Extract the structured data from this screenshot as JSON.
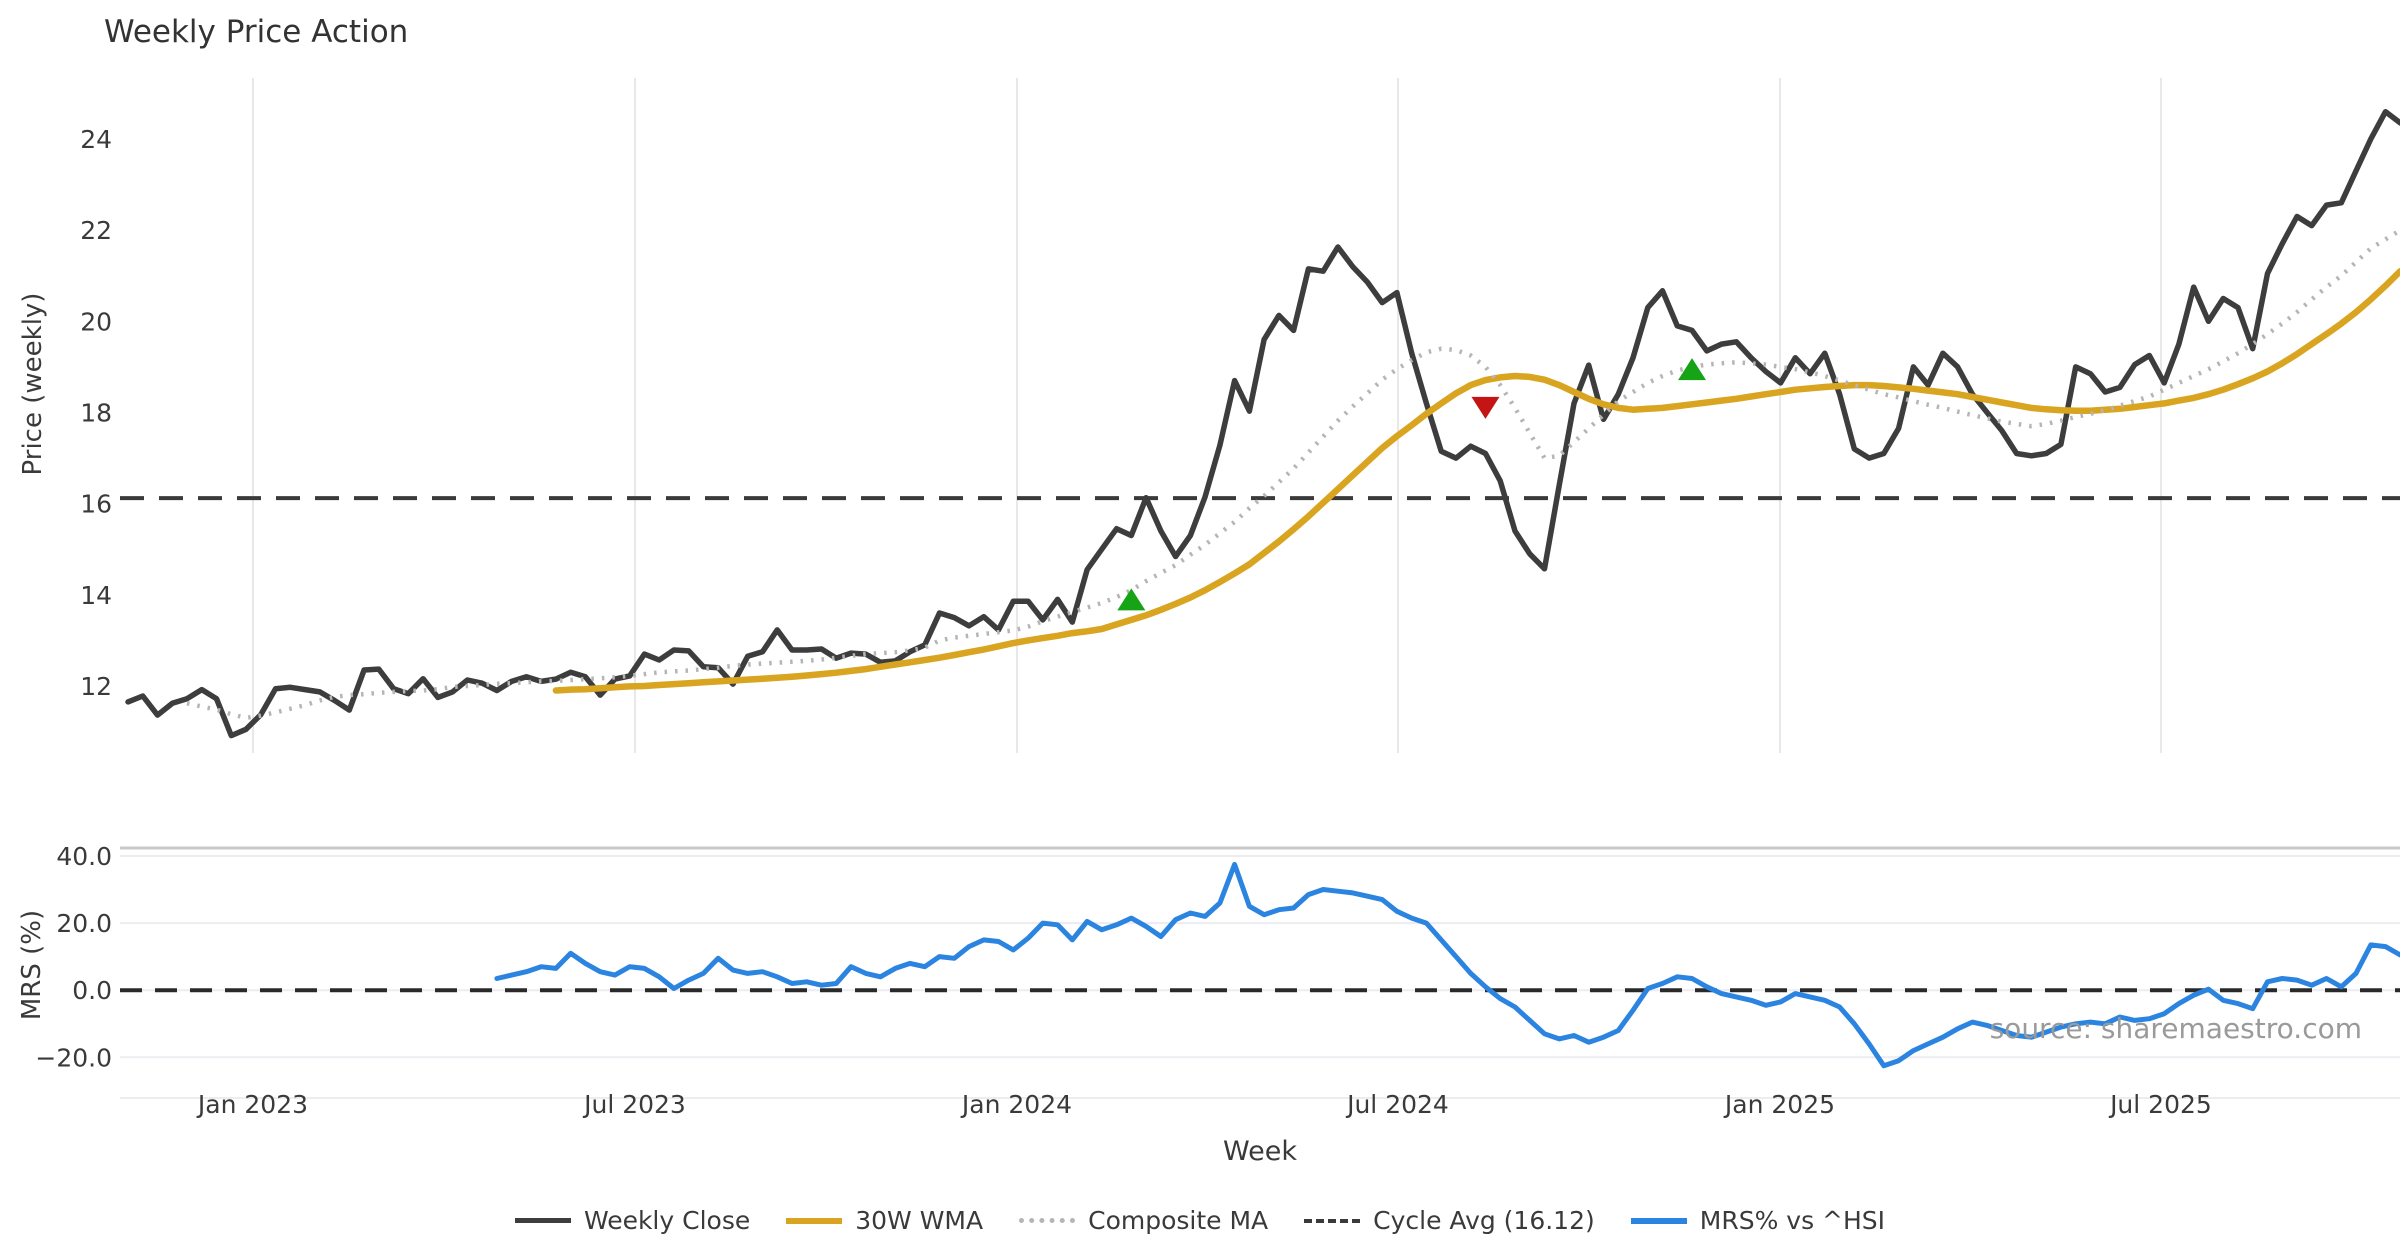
{
  "title": "Weekly Price Action",
  "source": "source: sharemaestro.com",
  "colors": {
    "close": "#3d3d3d",
    "wma": "#d9a420",
    "composite": "#b5b5b5",
    "cycle": "#3a3a3a",
    "mrs": "#2b84e0",
    "buy": "#16a316",
    "sell": "#c41414",
    "grid_upper": "#e8e8e8",
    "grid_lower": "#ececf1",
    "panel_border": "#c9c9c9",
    "zero_line": "#2a2a2a"
  },
  "chart_data": {
    "type": "line",
    "xlabel": "Week",
    "x_unit": "weekly, Nov 2022 - Nov 2025",
    "xticks": [
      {
        "label": "Jan 2023",
        "week": 8.47
      },
      {
        "label": "Jul 2023",
        "week": 34.36
      },
      {
        "label": "Jan 2024",
        "week": 60.25
      },
      {
        "label": "Jul 2024",
        "week": 86.07
      },
      {
        "label": "Jan 2025",
        "week": 111.96
      },
      {
        "label": "Jul 2025",
        "week": 137.78
      }
    ],
    "panels": [
      {
        "name": "price",
        "ylabel": "Price (weekly)",
        "ylim": [
          10.5,
          25.3
        ],
        "yticks": [
          {
            "label": "24",
            "v": 24
          },
          {
            "label": "22",
            "v": 22
          },
          {
            "label": "20",
            "v": 20
          },
          {
            "label": "18",
            "v": 18
          },
          {
            "label": "16",
            "v": 16
          },
          {
            "label": "14",
            "v": 14
          },
          {
            "label": "12",
            "v": 12
          }
        ],
        "cycle_avg": 16.12
      },
      {
        "name": "mrs",
        "ylabel": "MRS (%)",
        "ylim": [
          -32,
          42
        ],
        "yticks": [
          {
            "label": "40.0",
            "v": 40
          },
          {
            "label": "20.0",
            "v": 20
          },
          {
            "label": "0.0",
            "v": 0
          },
          {
            "label": "−20.0",
            "v": -20
          }
        ],
        "zero_line": 0
      }
    ],
    "series": [
      {
        "name": "Weekly Close",
        "panel": 0,
        "style": "solid",
        "color_key": "close",
        "width": 5.5,
        "start_week": 0,
        "values": [
          11.65,
          11.78,
          11.36,
          11.62,
          11.72,
          11.92,
          11.72,
          10.91,
          11.05,
          11.37,
          11.94,
          11.97,
          11.92,
          11.87,
          11.68,
          11.47,
          12.35,
          12.37,
          11.94,
          11.83,
          12.16,
          11.75,
          11.87,
          12.13,
          12.06,
          11.9,
          12.1,
          12.2,
          12.1,
          12.15,
          12.3,
          12.2,
          11.8,
          12.15,
          12.22,
          12.7,
          12.57,
          12.79,
          12.77,
          12.42,
          12.4,
          12.04,
          12.65,
          12.75,
          13.23,
          12.79,
          12.79,
          12.81,
          12.61,
          12.72,
          12.7,
          12.52,
          12.55,
          12.75,
          12.9,
          13.6,
          13.5,
          13.32,
          13.52,
          13.23,
          13.86,
          13.86,
          13.45,
          13.9,
          13.4,
          14.55,
          15.0,
          15.45,
          15.3,
          16.13,
          15.4,
          14.84,
          15.3,
          16.15,
          17.28,
          18.7,
          18.03,
          19.6,
          20.13,
          19.8,
          21.15,
          21.1,
          21.63,
          21.2,
          20.86,
          20.41,
          20.63,
          19.3,
          18.2,
          17.15,
          17.0,
          17.26,
          17.1,
          16.5,
          15.4,
          14.9,
          14.57,
          16.4,
          18.2,
          19.04,
          17.85,
          18.4,
          19.2,
          20.3,
          20.67,
          19.9,
          19.8,
          19.35,
          19.5,
          19.55,
          19.2,
          18.9,
          18.65,
          19.2,
          18.85,
          19.3,
          18.4,
          17.2,
          17.0,
          17.1,
          17.65,
          19.0,
          18.6,
          19.3,
          19.0,
          18.4,
          18.0,
          17.6,
          17.1,
          17.05,
          17.1,
          17.3,
          19.0,
          18.85,
          18.45,
          18.55,
          19.05,
          19.25,
          18.65,
          19.5,
          20.75,
          20.0,
          20.5,
          20.3,
          19.4,
          21.05,
          21.7,
          22.3,
          22.1,
          22.55,
          22.6,
          23.3,
          24.0,
          24.6,
          24.35
        ]
      },
      {
        "name": "30W WMA",
        "panel": 0,
        "style": "solid",
        "color_key": "wma",
        "width": 6.5,
        "start_week": 29,
        "values": [
          11.9,
          11.92,
          11.93,
          11.95,
          11.97,
          11.99,
          12.0,
          12.02,
          12.04,
          12.06,
          12.08,
          12.1,
          12.12,
          12.14,
          12.16,
          12.18,
          12.2,
          12.23,
          12.26,
          12.29,
          12.33,
          12.37,
          12.42,
          12.47,
          12.52,
          12.57,
          12.62,
          12.68,
          12.74,
          12.8,
          12.87,
          12.94,
          13.0,
          13.05,
          13.1,
          13.16,
          13.2,
          13.25,
          13.35,
          13.45,
          13.55,
          13.67,
          13.8,
          13.94,
          14.1,
          14.28,
          14.47,
          14.67,
          14.92,
          15.17,
          15.44,
          15.72,
          16.02,
          16.32,
          16.62,
          16.92,
          17.22,
          17.48,
          17.72,
          17.97,
          18.2,
          18.42,
          18.6,
          18.71,
          18.77,
          18.8,
          18.78,
          18.72,
          18.6,
          18.45,
          18.3,
          18.18,
          18.1,
          18.06,
          18.08,
          18.1,
          18.14,
          18.18,
          18.22,
          18.26,
          18.3,
          18.35,
          18.4,
          18.45,
          18.5,
          18.53,
          18.56,
          18.58,
          18.6,
          18.6,
          18.58,
          18.55,
          18.52,
          18.48,
          18.44,
          18.4,
          18.34,
          18.28,
          18.22,
          18.16,
          18.1,
          18.07,
          18.05,
          18.04,
          18.04,
          18.06,
          18.08,
          18.12,
          18.16,
          18.2,
          18.26,
          18.32,
          18.4,
          18.5,
          18.62,
          18.75,
          18.9,
          19.08,
          19.28,
          19.5,
          19.72,
          19.95,
          20.2,
          20.48,
          20.78,
          21.1
        ]
      },
      {
        "name": "Composite MA",
        "panel": 0,
        "style": "dotted",
        "color_key": "composite",
        "width": 4.5,
        "start_week": 4,
        "values": [
          11.62,
          11.55,
          11.48,
          11.38,
          11.3,
          11.35,
          11.42,
          11.5,
          11.58,
          11.68,
          11.76,
          11.8,
          11.82,
          11.85,
          11.87,
          11.89,
          11.9,
          11.93,
          11.98,
          12.0,
          12.02,
          12.05,
          12.06,
          12.08,
          12.1,
          12.11,
          12.13,
          12.15,
          12.17,
          12.19,
          12.22,
          12.26,
          12.3,
          12.32,
          12.34,
          12.37,
          12.4,
          12.44,
          12.47,
          12.49,
          12.51,
          12.53,
          12.55,
          12.58,
          12.62,
          12.66,
          12.7,
          12.72,
          12.74,
          12.78,
          12.84,
          13.0,
          13.06,
          13.1,
          13.14,
          13.18,
          13.22,
          13.3,
          13.42,
          13.52,
          13.62,
          13.72,
          13.82,
          13.95,
          14.1,
          14.3,
          14.48,
          14.65,
          14.88,
          15.1,
          15.35,
          15.6,
          15.9,
          16.17,
          16.47,
          16.77,
          17.12,
          17.47,
          17.82,
          18.13,
          18.42,
          18.72,
          18.95,
          19.15,
          19.32,
          19.4,
          19.37,
          19.25,
          19.0,
          18.6,
          18.1,
          17.55,
          17.0,
          17.05,
          17.35,
          17.65,
          17.95,
          18.25,
          18.45,
          18.65,
          18.8,
          18.92,
          19.0,
          19.05,
          19.08,
          19.1,
          19.08,
          19.05,
          19.0,
          18.95,
          18.88,
          18.8,
          18.7,
          18.6,
          18.5,
          18.4,
          18.33,
          18.25,
          18.17,
          18.1,
          18.02,
          17.94,
          17.87,
          17.8,
          17.75,
          17.7,
          17.75,
          17.82,
          17.9,
          17.97,
          18.05,
          18.15,
          18.25,
          18.35,
          18.5,
          18.65,
          18.8,
          18.95,
          19.12,
          19.3,
          19.5,
          19.72,
          19.95,
          20.2,
          20.48,
          20.75,
          21.0,
          21.3,
          21.6,
          21.8,
          22.0
        ]
      },
      {
        "name": "MRS% vs ^HSI",
        "panel": 1,
        "style": "solid",
        "color_key": "mrs",
        "width": 5,
        "start_week": 25,
        "values": [
          3.5,
          4.5,
          5.5,
          7.0,
          6.5,
          11.0,
          8.0,
          5.5,
          4.5,
          7.0,
          6.5,
          4.0,
          0.5,
          3.0,
          5.0,
          9.5,
          6.0,
          5.0,
          5.5,
          4.0,
          2.0,
          2.5,
          1.5,
          2.0,
          7.0,
          5.0,
          4.0,
          6.5,
          8.0,
          7.0,
          10.0,
          9.5,
          13.0,
          15.0,
          14.5,
          12.0,
          15.5,
          20.0,
          19.5,
          15.0,
          20.5,
          18.0,
          19.5,
          21.5,
          19.0,
          16.0,
          21.0,
          23.0,
          22.0,
          26.0,
          37.5,
          25.0,
          22.5,
          24.0,
          24.5,
          28.5,
          30.0,
          29.5,
          29.0,
          28.0,
          27.0,
          23.5,
          21.5,
          20.0,
          15.0,
          10.0,
          5.0,
          1.0,
          -2.5,
          -5.0,
          -9.0,
          -13.0,
          -14.5,
          -13.5,
          -15.5,
          -14.0,
          -12.0,
          -6.0,
          0.5,
          2.0,
          4.0,
          3.5,
          1.0,
          -1.0,
          -2.0,
          -3.0,
          -4.5,
          -3.5,
          -1.0,
          -2.0,
          -3.0,
          -5.0,
          -10.0,
          -16.0,
          -22.5,
          -21.0,
          -18.0,
          -16.0,
          -14.0,
          -11.5,
          -9.5,
          -10.5,
          -12.0,
          -13.5,
          -14.0,
          -12.5,
          -11.0,
          -10.0,
          -9.5,
          -10.0,
          -8.0,
          -9.0,
          -8.5,
          -7.0,
          -4.0,
          -1.5,
          0.3,
          -3.0,
          -4.0,
          -5.5,
          2.5,
          3.5,
          3.0,
          1.5,
          3.5,
          1.0,
          5.0,
          13.5,
          13.0,
          10.5
        ]
      }
    ],
    "markers": [
      {
        "week": 68,
        "value": 13.9,
        "dir": "up",
        "color_key": "buy"
      },
      {
        "week": 92,
        "value": 18.1,
        "dir": "down",
        "color_key": "sell"
      },
      {
        "week": 106,
        "value": 18.95,
        "dir": "up",
        "color_key": "buy"
      }
    ],
    "legend": [
      {
        "label": "Weekly Close",
        "swatch": "solid",
        "color_key": "close",
        "thick": 5
      },
      {
        "label": "30W WMA",
        "swatch": "solid",
        "color_key": "wma",
        "thick": 6
      },
      {
        "label": "Composite MA",
        "swatch": "dotted",
        "color_key": "composite",
        "thick": 5
      },
      {
        "label": "Cycle Avg (16.12)",
        "swatch": "dashed",
        "color_key": "cycle",
        "thick": 4
      },
      {
        "label": "MRS% vs ^HSI",
        "swatch": "solid",
        "color_key": "mrs",
        "thick": 6
      }
    ]
  }
}
